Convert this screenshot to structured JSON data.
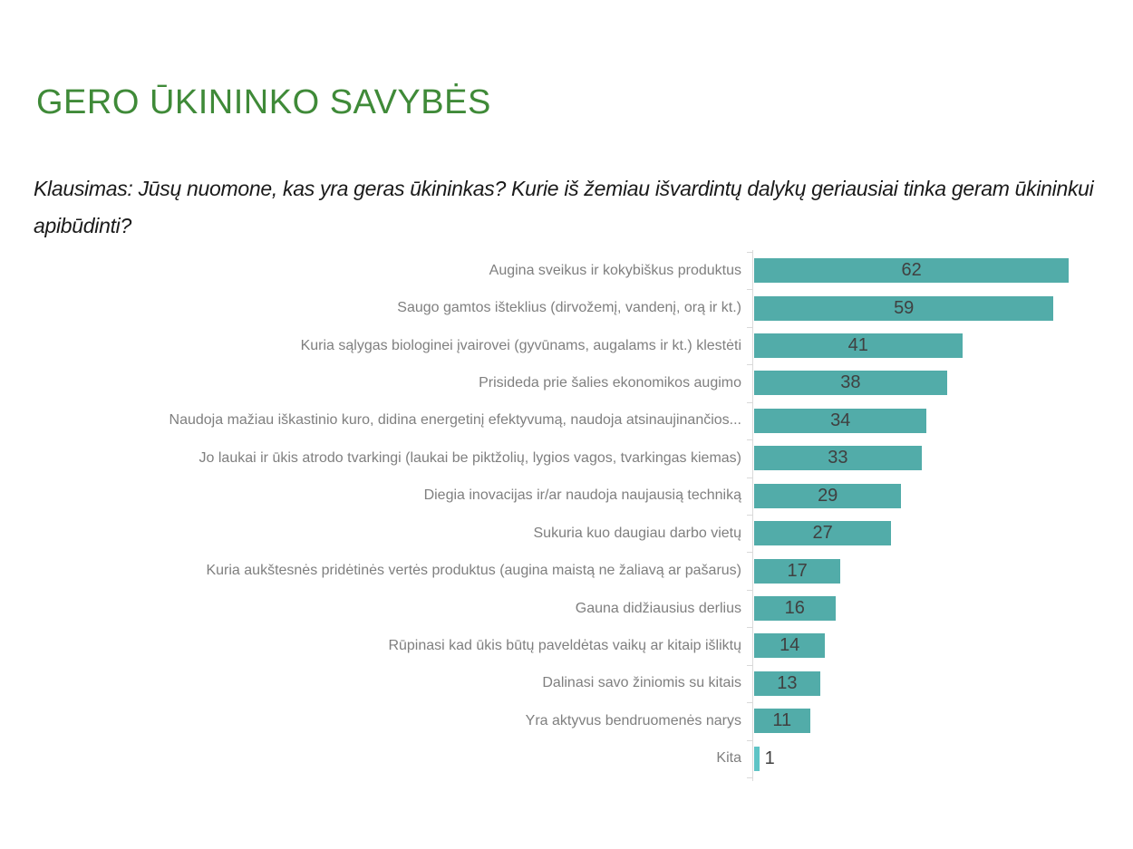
{
  "title": "GERO ŪKININKO SAVYBĖS",
  "question": "Klausimas: Jūsų nuomone, kas yra geras ūkininkas? Kurie iš žemiau išvardintų dalykų geriausiai tinka geram ūkininkui apibūdinti?",
  "colors": {
    "title_green": "#3F8A38",
    "bar_teal": "#52ACA9",
    "last_bar_teal": "#5FC4C6",
    "value_label": "#404040",
    "category_label": "#7F7F7F",
    "axis_line": "#D9D9D9",
    "question_text": "#1A1A1A",
    "background": "#FFFFFF"
  },
  "chart_data": {
    "type": "bar",
    "orientation": "horizontal",
    "title": "",
    "xlabel": "",
    "ylabel": "",
    "xlim": [
      0,
      70
    ],
    "grid": false,
    "legend": false,
    "value_labels": "inside-center",
    "categories": [
      "Augina sveikus ir kokybiškus produktus",
      "Saugo gamtos išteklius (dirvožemį, vandenį, orą ir kt.)",
      "Kuria sąlygas biologinei įvairovei (gyvūnams, augalams ir kt.) klestėti",
      "Prisideda prie šalies ekonomikos augimo",
      "Naudoja mažiau iškastinio kuro, didina energetinį efektyvumą, naudoja atsinaujinančios...",
      "Jo laukai ir ūkis atrodo tvarkingi (laukai be piktžolių, lygios vagos, tvarkingas kiemas)",
      "Diegia inovacijas ir/ar naudoja naujausią techniką",
      "Sukuria kuo daugiau darbo vietų",
      "Kuria aukštesnės pridėtinės vertės produktus (augina maistą ne žaliavą ar pašarus)",
      "Gauna didžiausius derlius",
      "Rūpinasi kad ūkis būtų paveldėtas vaikų ar kitaip išliktų",
      "Dalinasi savo žiniomis su kitais",
      "Yra aktyvus bendruomenės narys",
      "Kita"
    ],
    "values": [
      62,
      59,
      41,
      38,
      34,
      33,
      29,
      27,
      17,
      16,
      14,
      13,
      11,
      1
    ]
  }
}
